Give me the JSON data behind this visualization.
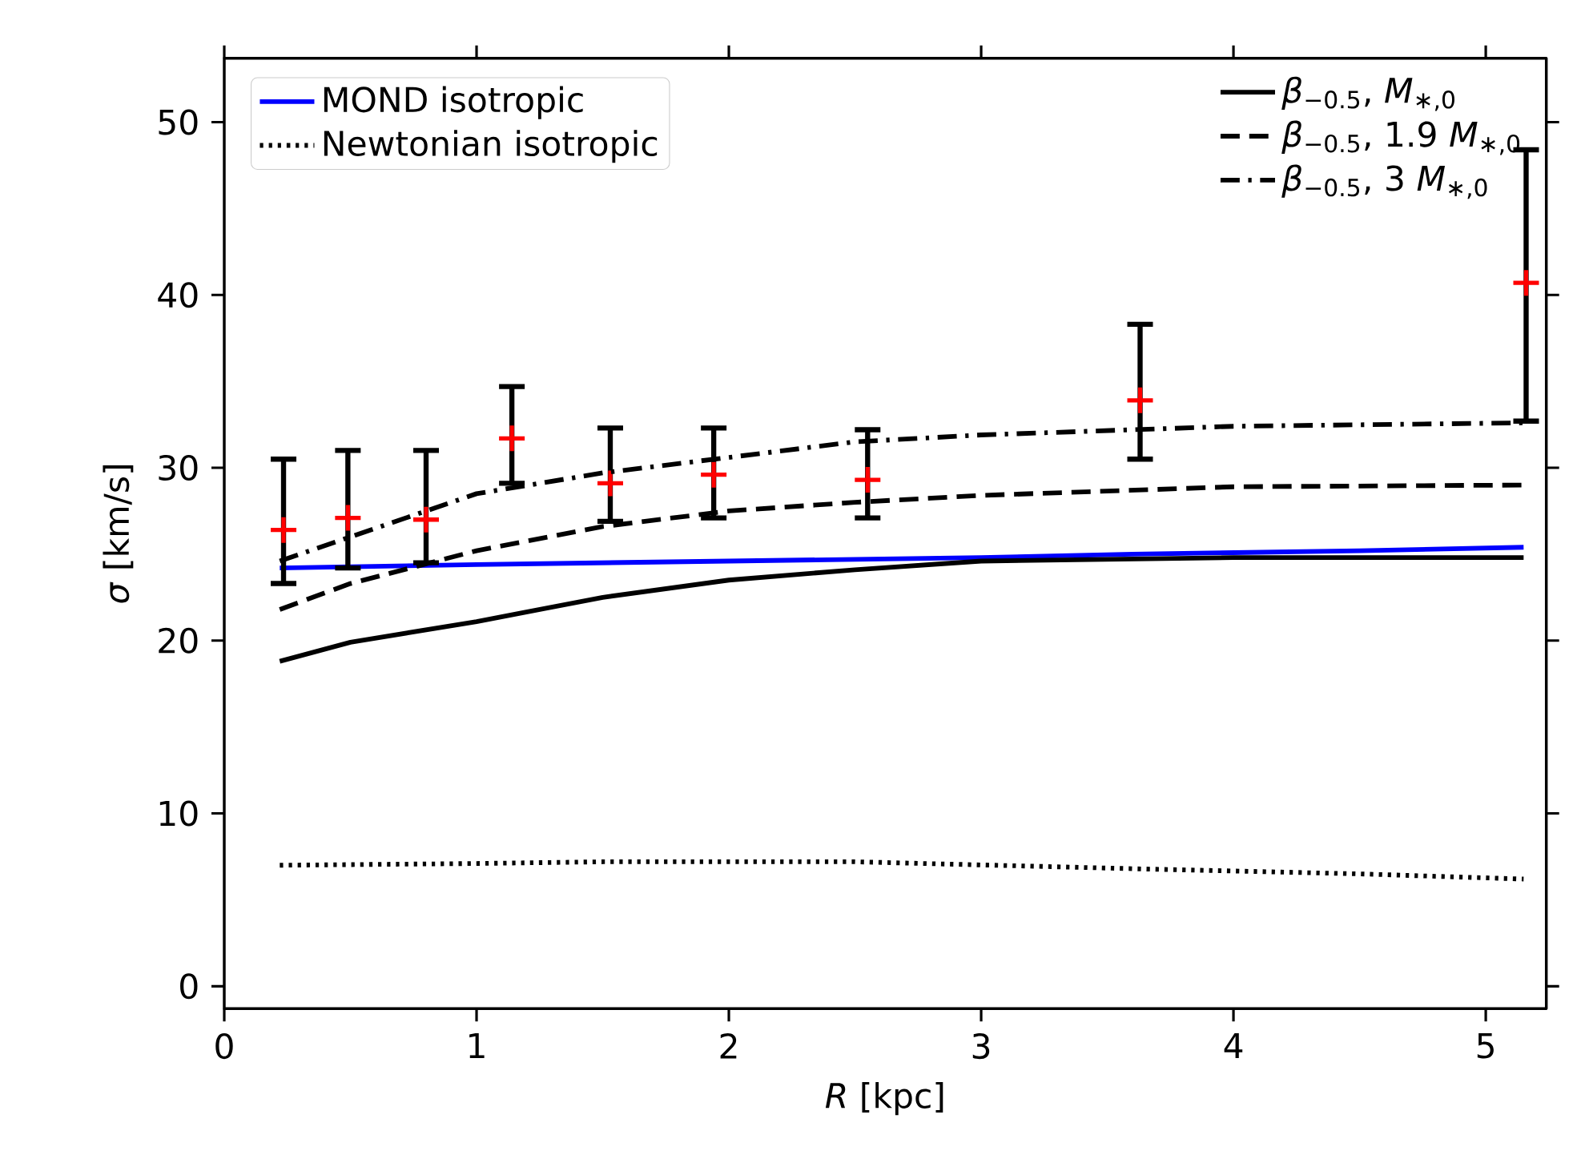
{
  "chart_data": {
    "type": "line",
    "xlabel": "*R* [kpc]",
    "ylabel": "*σ* [km/s]",
    "xlim": [
      0,
      5.24
    ],
    "ylim": [
      -1.3,
      53.7
    ],
    "xticks": [
      0,
      1,
      2,
      3,
      4,
      5
    ],
    "yticks": [
      0,
      10,
      20,
      30,
      40,
      50
    ],
    "grid": false,
    "legend": "top",
    "series": [
      {
        "name": "MOND isotropic",
        "color": "#0000ff",
        "line_style": "solid",
        "x": [
          0.22,
          1,
          2,
          3,
          3.6,
          4.5,
          5.15
        ],
        "values": [
          24.2,
          24.4,
          24.6,
          24.8,
          25.0,
          25.2,
          25.4
        ]
      },
      {
        "name": "Newtonian isotropic",
        "color": "#000000",
        "line_style": "dotted",
        "x": [
          0.22,
          1,
          1.5,
          2.5,
          3.6,
          4.5,
          5.15
        ],
        "values": [
          7.0,
          7.1,
          7.2,
          7.2,
          6.8,
          6.5,
          6.2
        ]
      },
      {
        "name": "*β*$_{−0.5}$, *M*$_{∗,0}$",
        "color": "#000000",
        "line_style": "solid",
        "x": [
          0.22,
          0.5,
          1,
          1.5,
          2,
          2.5,
          3,
          4,
          5.15
        ],
        "values": [
          18.8,
          19.9,
          21.1,
          22.5,
          23.5,
          24.1,
          24.6,
          24.8,
          24.8
        ]
      },
      {
        "name": "*β*$_{−0.5}$, 1.9 *M*$_{∗,0}$",
        "color": "#000000",
        "line_style": "dashed",
        "x": [
          0.22,
          0.5,
          1,
          1.5,
          2,
          2.5,
          3,
          4,
          5.15
        ],
        "values": [
          21.8,
          23.3,
          25.2,
          26.6,
          27.5,
          28.0,
          28.4,
          28.9,
          29.0
        ]
      },
      {
        "name": "*β*$_{−0.5}$, 3 *M*$_{∗,0}$",
        "color": "#000000",
        "line_style": "dashdot",
        "x": [
          0.22,
          0.5,
          1,
          1.5,
          2,
          2.5,
          3,
          4,
          5.15
        ],
        "values": [
          24.6,
          26.0,
          28.5,
          29.7,
          30.6,
          31.5,
          31.9,
          32.4,
          32.6
        ]
      },
      {
        "type": "scatter",
        "color": "#ff0000",
        "marker": "cross",
        "x": [
          0.235,
          0.49,
          0.8,
          1.14,
          1.53,
          1.94,
          2.55,
          3.63,
          5.16
        ],
        "values": [
          26.4,
          27.1,
          27.0,
          31.7,
          29.1,
          29.6,
          29.3,
          33.9,
          40.7
        ],
        "errors": [
          [
            23.3,
            30.5
          ],
          [
            24.2,
            31.0
          ],
          [
            24.5,
            31.0
          ],
          [
            29.1,
            34.7
          ],
          [
            26.9,
            32.3
          ],
          [
            27.1,
            32.3
          ],
          [
            27.1,
            32.2
          ],
          [
            30.5,
            38.3
          ],
          [
            32.7,
            48.4
          ]
        ]
      }
    ]
  }
}
